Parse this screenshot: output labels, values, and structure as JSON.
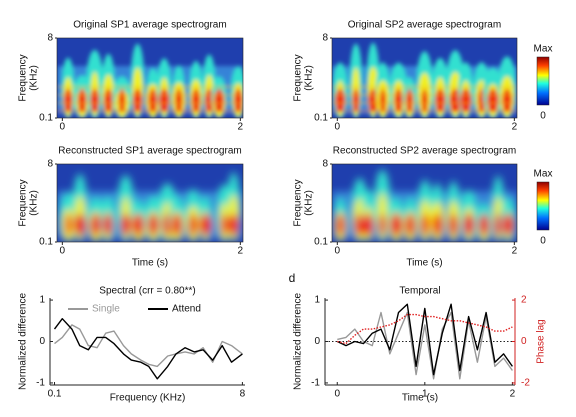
{
  "chart_data": [
    {
      "type": "spectrogram",
      "title": "Original SP1 average spectrogram",
      "ylabel": [
        "Frequency",
        "(KHz)"
      ],
      "ylog": true,
      "ylim": [
        0.1,
        8
      ],
      "yticks": [
        0.1,
        8
      ],
      "xlim": [
        -0.06,
        2.03
      ],
      "xticks": [
        0,
        2
      ]
    },
    {
      "type": "spectrogram",
      "title": "Original SP2 average spectrogram",
      "ylabel": [
        "Frequency",
        "(KHz)"
      ],
      "ylog": true,
      "ylim": [
        0.1,
        8
      ],
      "yticks": [
        0.1,
        8
      ],
      "xlim": [
        -0.06,
        2.03
      ],
      "xticks": [
        0,
        2
      ],
      "colorbar_labels": [
        "Max",
        "0"
      ]
    },
    {
      "type": "spectrogram",
      "title": "Reconstructed SP1 average spectrogram",
      "ylabel": [
        "Frequency",
        "(KHz)"
      ],
      "ylog": true,
      "ylim": [
        0.1,
        8
      ],
      "yticks": [
        0.1,
        8
      ],
      "xlim": [
        -0.06,
        2.03
      ],
      "xticks": [
        0,
        2
      ],
      "xlabel": "Time (s)"
    },
    {
      "type": "spectrogram",
      "title": "Reconstructed SP2 average spectrogram",
      "ylabel": [
        "Frequency",
        "(KHz)"
      ],
      "ylog": true,
      "ylim": [
        0.1,
        8
      ],
      "yticks": [
        0.1,
        8
      ],
      "xlim": [
        -0.06,
        2.03
      ],
      "xticks": [
        0,
        2
      ],
      "xlabel": "Time (s)",
      "colorbar_labels": [
        "Max",
        "0"
      ],
      "panel_label": "d"
    },
    {
      "type": "line",
      "title": "Spectral (crr = 0.80**)",
      "xlabel": "Frequency (KHz)",
      "ylabel": "Normalized difference",
      "xlog": true,
      "xlim": [
        0.09,
        8.5
      ],
      "xticks": [
        0.1,
        8
      ],
      "ylim": [
        -1.05,
        1.05
      ],
      "yticks": [
        -1,
        0,
        1
      ],
      "x": [
        0.1,
        0.12,
        0.15,
        0.18,
        0.22,
        0.27,
        0.33,
        0.4,
        0.5,
        0.6,
        0.75,
        0.9,
        1.1,
        1.4,
        1.7,
        2.1,
        2.6,
        3.2,
        4,
        5,
        6.2,
        8
      ],
      "series": [
        {
          "name": "Single",
          "color": "#999999",
          "values": [
            -0.05,
            0.1,
            0.4,
            0.3,
            -0.1,
            -0.15,
            0.2,
            0.25,
            -0.1,
            -0.3,
            -0.45,
            -0.55,
            -0.6,
            -0.35,
            -0.3,
            -0.25,
            -0.3,
            -0.15,
            -0.5,
            0,
            -0.1,
            -0.3
          ]
        },
        {
          "name": "Attend",
          "color": "#000000",
          "values": [
            0.3,
            0.55,
            0.3,
            -0.1,
            -0.2,
            0.1,
            0.1,
            -0.05,
            -0.3,
            -0.45,
            -0.5,
            -0.6,
            -0.9,
            -0.6,
            -0.3,
            -0.15,
            -0.25,
            -0.2,
            -0.45,
            -0.1,
            -0.5,
            -0.3
          ]
        }
      ]
    },
    {
      "type": "line",
      "title": "Temporal",
      "xlabel": "Time (s)",
      "ylabel": "Normalized difference",
      "y2label": "Phase lag",
      "xlim": [
        -0.14,
        2.03
      ],
      "xticks": [
        0,
        1,
        2
      ],
      "ylim": [
        -1.05,
        1.05
      ],
      "yticks": [
        -1,
        0,
        1
      ],
      "y2lim": [
        -2.1,
        2.1
      ],
      "y2ticks": [
        -2,
        0,
        2
      ],
      "x": [
        0,
        0.1,
        0.2,
        0.3,
        0.4,
        0.5,
        0.6,
        0.7,
        0.8,
        0.9,
        1,
        1.1,
        1.2,
        1.3,
        1.4,
        1.5,
        1.6,
        1.7,
        1.8,
        1.9,
        2
      ],
      "series": [
        {
          "color": "#999999",
          "values": [
            0.05,
            0.1,
            0.3,
            0,
            -0.1,
            0.7,
            -0.3,
            0.2,
            0.7,
            -0.8,
            0.4,
            -0.9,
            0.3,
            0.7,
            -0.9,
            0.5,
            -0.5,
            0.6,
            -0.6,
            -0.4,
            -0.7
          ]
        },
        {
          "color": "#000000",
          "values": [
            0,
            -0.1,
            0,
            -0.05,
            0.2,
            0.3,
            -0.2,
            0.7,
            0.9,
            -0.6,
            0.8,
            -0.8,
            0.2,
            0.9,
            -0.7,
            0.6,
            -0.2,
            0.7,
            -0.5,
            -0.3,
            -0.6
          ]
        },
        {
          "color": "#e02020",
          "axis": "y2",
          "dashed": true,
          "values": [
            0,
            -0.1,
            0.3,
            0.6,
            0.6,
            0.7,
            0.8,
            1.0,
            1.3,
            1.3,
            1.2,
            1.2,
            1.1,
            1.0,
            1.0,
            0.9,
            0.8,
            0.7,
            0.5,
            0.5,
            0.7
          ]
        }
      ]
    }
  ]
}
